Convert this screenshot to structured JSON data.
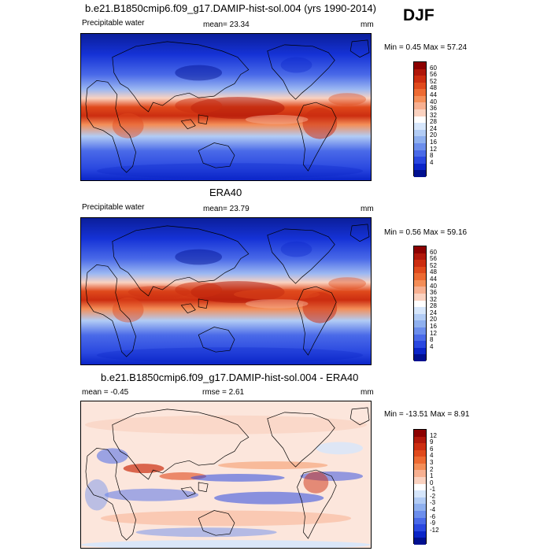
{
  "season": "DJF",
  "panels": [
    {
      "title": "b.e21.B1850cmip6.f09_g17.DAMIP-hist-sol.004 (yrs 1990-2014)",
      "left_label": "Precipitable water",
      "center_label": "mean=  23.34",
      "units": "mm",
      "minmax": "Min =   0.45 Max =  57.24",
      "colorbar": {
        "labels": [
          "60",
          "56",
          "52",
          "48",
          "44",
          "40",
          "36",
          "32",
          "28",
          "24",
          "20",
          "16",
          "12",
          "8",
          "4"
        ],
        "colors": [
          "#8c0000",
          "#b0170a",
          "#cc2d10",
          "#e04a1c",
          "#ed6a32",
          "#f48e58",
          "#f7b091",
          "#fad2c0",
          "#ffffff",
          "#d6e6fb",
          "#b2ccf5",
          "#8fb0ef",
          "#6c8eec",
          "#4a6ae8",
          "#2a48e0",
          "#0b25c8",
          "#001090"
        ]
      },
      "map_kind": "precip"
    },
    {
      "title": "ERA40",
      "left_label": "Precipitable water",
      "center_label": "mean=  23.79",
      "units": "mm",
      "minmax": "Min =   0.56 Max =  59.16",
      "colorbar": {
        "labels": [
          "60",
          "56",
          "52",
          "48",
          "44",
          "40",
          "36",
          "32",
          "28",
          "24",
          "20",
          "16",
          "12",
          "8",
          "4"
        ],
        "colors": [
          "#8c0000",
          "#b0170a",
          "#cc2d10",
          "#e04a1c",
          "#ed6a32",
          "#f48e58",
          "#f7b091",
          "#fad2c0",
          "#ffffff",
          "#d6e6fb",
          "#b2ccf5",
          "#8fb0ef",
          "#6c8eec",
          "#4a6ae8",
          "#2a48e0",
          "#0b25c8",
          "#001090"
        ]
      },
      "map_kind": "precip"
    },
    {
      "title": "b.e21.B1850cmip6.f09_g17.DAMIP-hist-sol.004 - ERA40",
      "left_label": "mean =  -0.45",
      "center_label": "rmse =   2.61",
      "units": "mm",
      "minmax": "Min = -13.51 Max =   8.91",
      "colorbar": {
        "labels": [
          "12",
          "9",
          "6",
          "4",
          "3",
          "2",
          "1",
          "0",
          "-1",
          "-2",
          "-3",
          "-4",
          "-6",
          "-9",
          "-12"
        ],
        "colors": [
          "#8c0000",
          "#b0170a",
          "#cc2d10",
          "#e04a1c",
          "#ed6a32",
          "#f48e58",
          "#f7b091",
          "#fad2c0",
          "#ffffff",
          "#d6e6fb",
          "#b2ccf5",
          "#8fb0ef",
          "#6c8eec",
          "#4a6ae8",
          "#2a48e0",
          "#0b25c8",
          "#001090"
        ]
      },
      "map_kind": "diff"
    }
  ]
}
